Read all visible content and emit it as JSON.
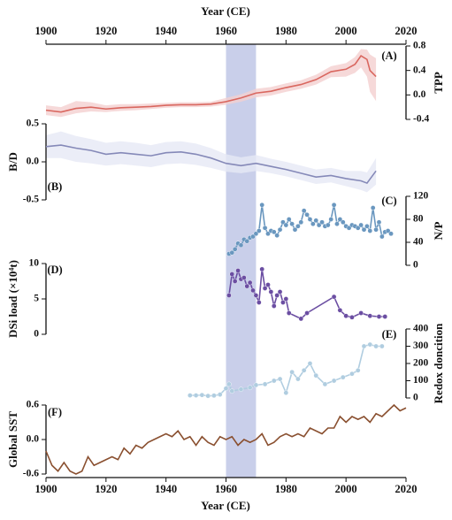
{
  "x_axis": {
    "label": "Year (CE)",
    "xlim": [
      1900,
      2020
    ],
    "xticks": [
      1900,
      1920,
      1940,
      1960,
      1980,
      2000,
      2020
    ],
    "highlight": [
      1960,
      1970
    ],
    "highlight_color": "#b7bfe3"
  },
  "chart_data": [
    {
      "type": "line",
      "label": "(A)",
      "ylabel": "TPP",
      "side": "right",
      "ylim": [
        -0.4,
        0.8
      ],
      "yticks": [
        0.8,
        0.4,
        {
          "value": 0,
          "label": "0.0"
        },
        -0.4
      ],
      "series": [
        {
          "color": "#d9675f",
          "band_color": "#f4cfcf",
          "x": [
            1900,
            1905,
            1910,
            1915,
            1920,
            1925,
            1930,
            1935,
            1940,
            1945,
            1950,
            1955,
            1960,
            1965,
            1970,
            1975,
            1980,
            1985,
            1990,
            1995,
            2000,
            2003,
            2005,
            2007,
            2008,
            2010
          ],
          "values": [
            -0.25,
            -0.28,
            -0.22,
            -0.2,
            -0.23,
            -0.21,
            -0.2,
            -0.19,
            -0.17,
            -0.16,
            -0.16,
            -0.15,
            -0.11,
            -0.05,
            0.03,
            0.06,
            0.12,
            0.17,
            0.25,
            0.38,
            0.42,
            0.5,
            0.64,
            0.58,
            0.4,
            0.3
          ],
          "lower": [
            -0.33,
            -0.36,
            -0.3,
            -0.27,
            -0.28,
            -0.26,
            -0.25,
            -0.23,
            -0.21,
            -0.2,
            -0.2,
            -0.19,
            -0.16,
            -0.11,
            -0.04,
            -0.01,
            0.05,
            0.1,
            0.17,
            0.29,
            0.3,
            0.36,
            0.45,
            0.3,
            0.05,
            -0.1
          ],
          "upper": [
            -0.17,
            -0.2,
            -0.1,
            -0.12,
            -0.17,
            -0.15,
            -0.15,
            -0.14,
            -0.13,
            -0.12,
            -0.12,
            -0.11,
            -0.05,
            0.01,
            0.1,
            0.13,
            0.19,
            0.24,
            0.33,
            0.47,
            0.52,
            0.62,
            0.75,
            0.74,
            0.66,
            0.6
          ]
        }
      ]
    },
    {
      "type": "line",
      "label": "(B)",
      "ylabel": "B/D",
      "side": "left",
      "ylim": [
        -0.5,
        0.5
      ],
      "yticks": [
        0.5,
        {
          "value": 0,
          "label": "0.0"
        },
        -0.5
      ],
      "series": [
        {
          "color": "#8589b8",
          "band_color": "#e6e8f5",
          "x": [
            1900,
            1905,
            1910,
            1915,
            1920,
            1925,
            1930,
            1935,
            1940,
            1945,
            1950,
            1955,
            1960,
            1965,
            1970,
            1975,
            1980,
            1985,
            1990,
            1995,
            2000,
            2005,
            2007,
            2010
          ],
          "values": [
            0.2,
            0.22,
            0.18,
            0.15,
            0.1,
            0.12,
            0.1,
            0.08,
            0.12,
            0.13,
            0.1,
            0.05,
            -0.02,
            -0.05,
            -0.02,
            -0.06,
            -0.1,
            -0.15,
            -0.2,
            -0.18,
            -0.22,
            -0.25,
            -0.28,
            -0.12
          ],
          "lower": [
            0.05,
            0.05,
            0.0,
            -0.02,
            -0.05,
            -0.03,
            -0.05,
            -0.07,
            -0.03,
            -0.02,
            -0.04,
            -0.08,
            -0.13,
            -0.15,
            -0.12,
            -0.15,
            -0.19,
            -0.24,
            -0.29,
            -0.27,
            -0.32,
            -0.37,
            -0.4,
            -0.3
          ],
          "upper": [
            0.35,
            0.4,
            0.34,
            0.3,
            0.25,
            0.27,
            0.25,
            0.22,
            0.26,
            0.27,
            0.24,
            0.18,
            0.1,
            0.06,
            0.09,
            0.04,
            0.0,
            -0.05,
            -0.1,
            -0.08,
            -0.12,
            -0.12,
            -0.14,
            0.05
          ]
        }
      ]
    },
    {
      "type": "line",
      "label": "(C)",
      "ylabel": "N/P",
      "side": "right",
      "ylim": [
        0,
        120
      ],
      "yticks": [
        120,
        80,
        40,
        0
      ],
      "markers": true,
      "series": [
        {
          "color": "#6a97bf",
          "x": [
            1961,
            1962,
            1963,
            1964,
            1965,
            1966,
            1967,
            1968,
            1969,
            1970,
            1971,
            1972,
            1973,
            1974,
            1975,
            1976,
            1977,
            1978,
            1979,
            1980,
            1981,
            1982,
            1983,
            1984,
            1985,
            1986,
            1987,
            1988,
            1989,
            1990,
            1991,
            1992,
            1993,
            1994,
            1995,
            1996,
            1997,
            1998,
            1999,
            2000,
            2001,
            2002,
            2003,
            2004,
            2005,
            2006,
            2007,
            2008,
            2009,
            2010,
            2011,
            2012,
            2013,
            2014,
            2015
          ],
          "values": [
            20,
            22,
            28,
            38,
            35,
            45,
            42,
            48,
            50,
            55,
            60,
            105,
            65,
            55,
            60,
            58,
            52,
            62,
            75,
            70,
            80,
            72,
            62,
            68,
            75,
            95,
            88,
            80,
            72,
            78,
            70,
            75,
            68,
            70,
            80,
            105,
            72,
            80,
            75,
            68,
            65,
            70,
            68,
            65,
            70,
            62,
            68,
            60,
            100,
            62,
            75,
            50,
            58,
            60,
            55
          ]
        }
      ]
    },
    {
      "type": "line",
      "label": "(D)",
      "ylabel": "DSi load (×10⁴t)",
      "side": "left",
      "ylim": [
        0,
        10
      ],
      "yticks": [
        10,
        5,
        0
      ],
      "markers": true,
      "series": [
        {
          "color": "#6b4ea2",
          "x": [
            1961,
            1962,
            1963,
            1964,
            1965,
            1966,
            1967,
            1968,
            1969,
            1970,
            1971,
            1972,
            1973,
            1974,
            1975,
            1976,
            1977,
            1978,
            1979,
            1980,
            1981,
            1985,
            1987,
            1996,
            1998,
            2000,
            2002,
            2005,
            2008,
            2011,
            2013
          ],
          "values": [
            5.5,
            8.5,
            7.5,
            9,
            7.8,
            8,
            6.8,
            7.3,
            6.2,
            5.5,
            4.5,
            9.2,
            6.5,
            7,
            6,
            4,
            5.5,
            6,
            4.5,
            5,
            3,
            2.2,
            3,
            5.3,
            3.4,
            2.6,
            2.4,
            3,
            2.6,
            2.5,
            2.5
          ]
        }
      ]
    },
    {
      "type": "line",
      "label": "(E)",
      "ylabel": "Redox doncition",
      "side": "right",
      "ylim": [
        0,
        400
      ],
      "yticks": [
        400,
        300,
        200,
        100,
        0
      ],
      "markers": true,
      "series": [
        {
          "color": "#b0cde0",
          "x": [
            1948,
            1950,
            1952,
            1954,
            1956,
            1958,
            1960,
            1961,
            1962,
            1965,
            1968,
            1970,
            1973,
            1976,
            1978,
            1980,
            1982,
            1984,
            1986,
            1988,
            1990,
            1993,
            1996,
            1999,
            2002,
            2004,
            2006,
            2008,
            2010,
            2012
          ],
          "values": [
            15,
            15,
            17,
            12,
            14,
            20,
            55,
            80,
            40,
            50,
            60,
            75,
            80,
            100,
            110,
            30,
            150,
            110,
            160,
            200,
            130,
            80,
            100,
            120,
            140,
            160,
            300,
            310,
            300,
            300
          ]
        }
      ]
    },
    {
      "type": "line",
      "label": "(F)",
      "ylabel": "Global SST",
      "side": "left",
      "ylim": [
        -0.6,
        0.6
      ],
      "yticks": [
        0.6,
        {
          "value": 0,
          "label": "0.0"
        },
        -0.6
      ],
      "series": [
        {
          "color": "#8a5030",
          "x": [
            1900,
            1902,
            1904,
            1906,
            1908,
            1910,
            1912,
            1914,
            1916,
            1918,
            1920,
            1922,
            1924,
            1926,
            1928,
            1930,
            1932,
            1934,
            1936,
            1938,
            1940,
            1942,
            1944,
            1946,
            1948,
            1950,
            1952,
            1954,
            1956,
            1958,
            1960,
            1962,
            1964,
            1966,
            1968,
            1970,
            1972,
            1974,
            1976,
            1978,
            1980,
            1982,
            1984,
            1986,
            1988,
            1990,
            1992,
            1994,
            1996,
            1998,
            2000,
            2002,
            2004,
            2006,
            2008,
            2010,
            2012,
            2014,
            2016,
            2018,
            2020
          ],
          "values": [
            -0.2,
            -0.45,
            -0.55,
            -0.4,
            -0.55,
            -0.6,
            -0.55,
            -0.3,
            -0.45,
            -0.4,
            -0.35,
            -0.3,
            -0.35,
            -0.15,
            -0.25,
            -0.1,
            -0.15,
            -0.05,
            0,
            0.05,
            0.1,
            0.05,
            0.15,
            0,
            0.05,
            -0.1,
            0.05,
            -0.05,
            -0.1,
            0.05,
            0,
            0.05,
            -0.1,
            0,
            -0.05,
            0,
            0.1,
            -0.1,
            -0.05,
            0.05,
            0.1,
            0.05,
            0.1,
            0.05,
            0.2,
            0.15,
            0.1,
            0.2,
            0.2,
            0.4,
            0.3,
            0.4,
            0.35,
            0.4,
            0.3,
            0.45,
            0.4,
            0.5,
            0.6,
            0.5,
            0.55
          ]
        }
      ]
    }
  ]
}
